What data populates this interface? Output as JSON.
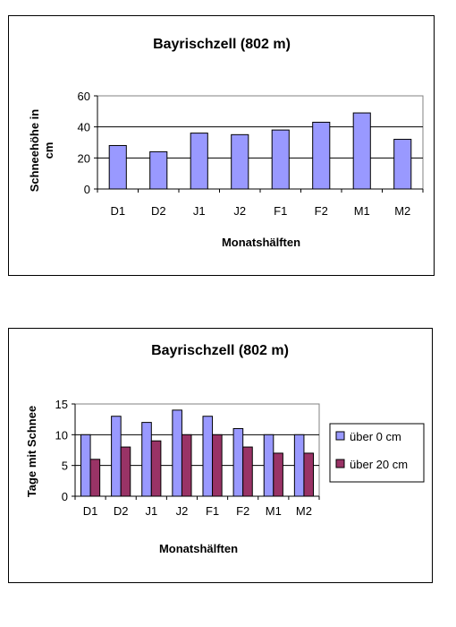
{
  "chart_data": [
    {
      "type": "bar",
      "title": "Bayrischzell (802 m)",
      "xlabel": "Monatshälften",
      "ylabel": "Schneehöhe in cm",
      "ylabel_lines": [
        "Schneehöhe in",
        "cm"
      ],
      "categories": [
        "D1",
        "D2",
        "J1",
        "J2",
        "F1",
        "F2",
        "M1",
        "M2"
      ],
      "series": [
        {
          "values": [
            28,
            24,
            36,
            35,
            38,
            43,
            49,
            32
          ],
          "color": "#9999ff"
        }
      ],
      "ylim": [
        0,
        60
      ],
      "yticks": [
        "0",
        "20",
        "40",
        "60"
      ],
      "grid": true,
      "legend": "none"
    },
    {
      "type": "bar",
      "title": "Bayrischzell (802 m)",
      "xlabel": "Monatshälften",
      "ylabel": "Tage mit Schnee",
      "categories": [
        "D1",
        "D2",
        "J1",
        "J2",
        "F1",
        "F2",
        "M1",
        "M2"
      ],
      "series": [
        {
          "name": "über 0 cm",
          "values": [
            10,
            13,
            12,
            14,
            13,
            11,
            10,
            10
          ],
          "color": "#9999ff"
        },
        {
          "name": "über 20 cm",
          "values": [
            6,
            8,
            9,
            10,
            10,
            8,
            7,
            7
          ],
          "color": "#993366"
        }
      ],
      "ylim": [
        0,
        15
      ],
      "yticks": [
        "0",
        "5",
        "10",
        "15"
      ],
      "grid": true,
      "legend": "right"
    }
  ]
}
